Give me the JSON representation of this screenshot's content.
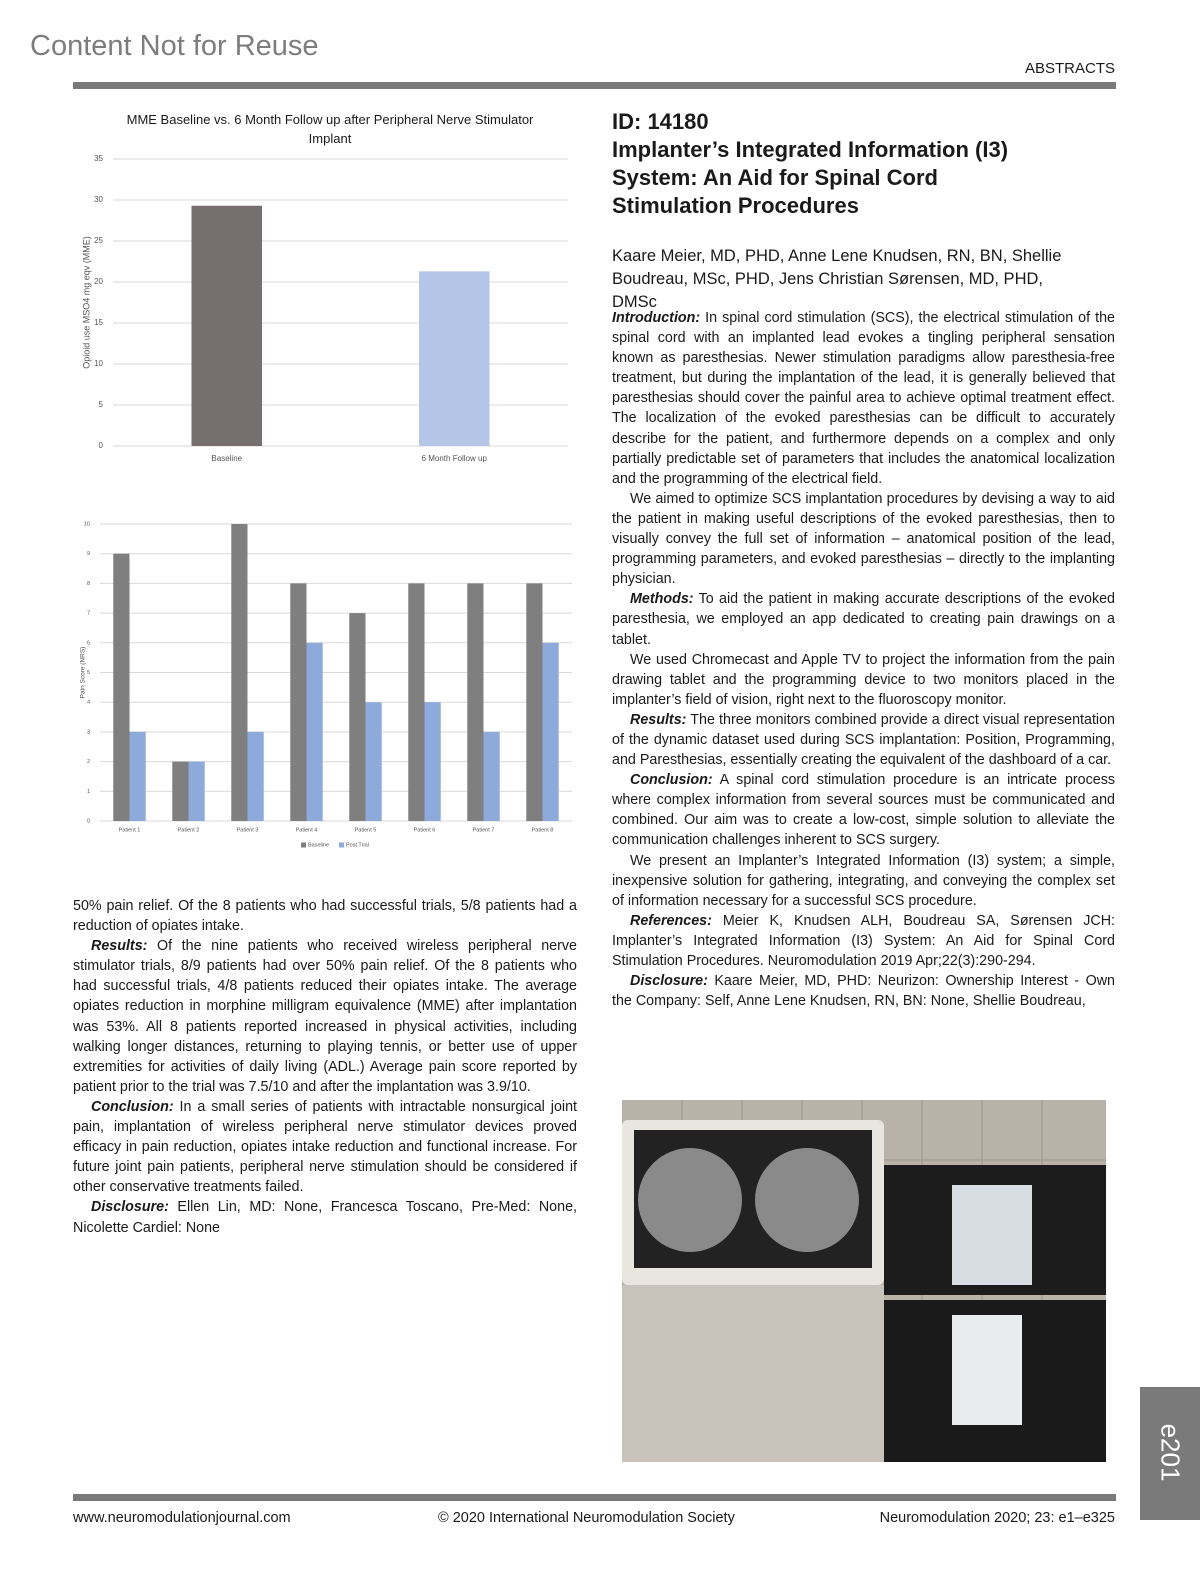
{
  "header": {
    "watermark": "Content Not for Reuse",
    "section": "ABSTRACTS"
  },
  "chart_data": [
    {
      "type": "bar",
      "title": "MME Baseline vs. 6 Month Follow up after Peripheral Nerve Stimulator Implant",
      "y_label": "Opioid use MSO4 mg eqv (MME)",
      "categories": [
        "Baseline",
        "6 Month Follow up"
      ],
      "values": [
        29.3,
        21.3
      ],
      "colors": [
        "#756f6f",
        "#b4c6e7"
      ],
      "ylim": [
        0,
        35
      ],
      "yticks": [
        0,
        5,
        10,
        15,
        20,
        25,
        30,
        35
      ],
      "grid": true
    },
    {
      "type": "bar",
      "y_label": "Pain Score (NRS)",
      "categories": [
        "Patient 1",
        "Patient 2",
        "Patient 3",
        "Patient 4",
        "Patient 5",
        "Patient 6",
        "Patient 7",
        "Patient 8"
      ],
      "series": [
        {
          "name": "Baseline",
          "color": "#7f7f7f",
          "values": [
            9,
            2,
            10,
            8,
            7,
            8,
            8,
            8
          ]
        },
        {
          "name": "Post Trial",
          "color": "#8eaadb",
          "values": [
            3,
            2,
            3,
            6,
            4,
            4,
            3,
            6
          ]
        }
      ],
      "ylim": [
        0,
        10
      ],
      "yticks": [
        0,
        1,
        2,
        3,
        4,
        5,
        6,
        7,
        8,
        9,
        10
      ],
      "grid": true,
      "legend": "bottom"
    }
  ],
  "left_column": {
    "paragraphs": [
      {
        "text": "50% pain relief. Of the 8 patients who had successful trials, 5/8 patients had a reduction of opiates intake."
      },
      {
        "lead": "Results:",
        "text": " Of the nine patients who received wireless peripheral nerve stimulator trials, 8/9 patients had over 50% pain relief. Of the 8 patients who had successful trials, 4/8 patients reduced their opiates intake. The average opiates reduction in morphine milligram equivalence (MME) after implantation was 53%. All 8 patients reported increased in physical activities, including walking longer distances, returning to playing tennis, or better use of upper extremities for activities of daily living (ADL.) Average pain score reported by patient prior to the trial was 7.5/10 and after the implantation was 3.9/10."
      },
      {
        "lead": "Conclusion:",
        "text": " In a small series of patients with intractable nonsurgical joint pain, implantation of wireless peripheral nerve stimulator devices proved efficacy in pain reduction, opiates intake reduction and functional increase. For future joint pain patients, peripheral nerve stimulation should be considered if other conservative treatments failed."
      },
      {
        "lead": "Disclosure:",
        "text": " Ellen Lin, MD: None, Francesca Toscano, Pre-Med: None, Nicolette Cardiel: None"
      }
    ]
  },
  "article": {
    "id": "ID: 14180",
    "title": "Implanter’s Integrated Information (I3) System: An Aid for Spinal Cord Stimulation Procedures",
    "authors": "Kaare Meier, MD, PHD, Anne Lene Knudsen, RN, BN, Shellie Boudreau, MSc, PHD, Jens Christian Sørensen, MD, PHD, DMSc",
    "paragraphs": [
      {
        "lead": "Introduction:",
        "text": " In spinal cord stimulation (SCS), the electrical stimulation of the spinal cord with an implanted lead evokes a tingling peripheral sensation known as paresthesias. Newer stimulation paradigms allow paresthesia-free treatment, but during the implantation of the lead, it is generally believed that paresthesias should cover the painful area to achieve optimal treatment effect. The localization of the evoked paresthesias can be difficult to accurately describe for the patient, and furthermore depends on a complex and only partially predictable set of parameters that includes the anatomical localization and the programming of the electrical field."
      },
      {
        "text": "We aimed to optimize SCS implantation procedures by devising a way to aid the patient in making useful descriptions of the evoked paresthesias, then to visually convey the full set of information – anatomical position of the lead, programming parameters, and evoked paresthesias – directly to the implanting physician."
      },
      {
        "lead": "Methods:",
        "text": " To aid the patient in making accurate descriptions of the evoked paresthesia, we employed an app dedicated to creating pain drawings on a tablet."
      },
      {
        "text": "We used Chromecast and Apple TV to project the information from the pain drawing tablet and the programming device to two monitors placed in the implanter’s field of vision, right next to the fluoroscopy monitor."
      },
      {
        "lead": "Results:",
        "text": " The three monitors combined provide a direct visual representation of the dynamic dataset used during SCS implantation: Position, Programming, and Paresthesias, essentially creating the equivalent of the dashboard of a car."
      },
      {
        "lead": "Conclusion:",
        "text": " A spinal cord stimulation procedure is an intricate process where complex information from several sources must be communicated and combined. Our aim was to create a low-cost, simple solution to alleviate the communication challenges inherent to SCS surgery."
      },
      {
        "text": "We present an Implanter’s Integrated Information (I3) system; a simple, inexpensive solution for gathering, integrating, and conveying the complex set of information necessary for a successful SCS procedure."
      },
      {
        "lead": "References:",
        "text": " Meier K, Knudsen ALH, Boudreau SA, Sørensen JCH: Implanter’s Integrated Information (I3) System: An Aid for Spinal Cord Stimulation Procedures. Neuromodulation 2019 Apr;22(3):290-294."
      },
      {
        "lead": "Disclosure:",
        "text": " Kaare Meier, MD, PHD: Neurizon: Ownership Interest - Own the Company: Self, Anne Lene Knudsen, RN, BN: None, Shellie Boudreau,"
      }
    ]
  },
  "footer": {
    "website": "www.neuromodulationjournal.com",
    "copyright": "© 2020 International Neuromodulation Society",
    "citation": "Neuromodulation 2020; 23: e1–e325",
    "page": "e201"
  }
}
